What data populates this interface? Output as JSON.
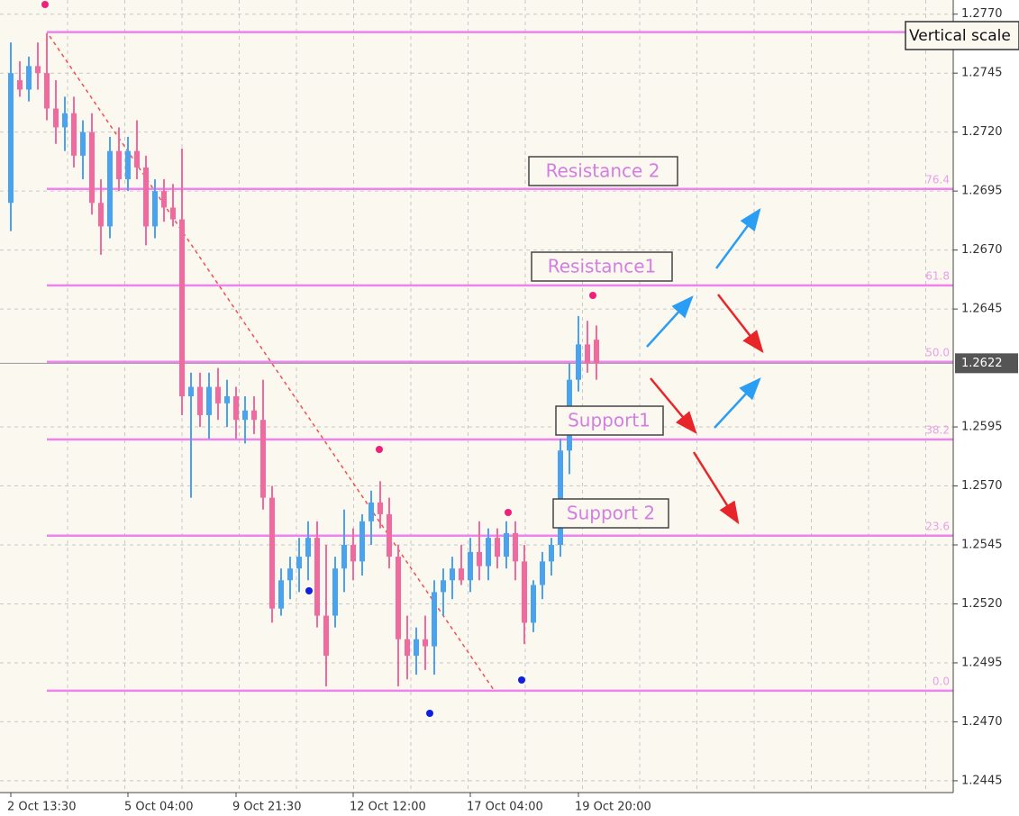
{
  "chart_data": {
    "type": "candlestick",
    "categories": [
      "2 Oct 13:30",
      null,
      null,
      null,
      null,
      null,
      null,
      null,
      null,
      null,
      null,
      null,
      null,
      "5 Oct 04:00",
      null,
      null,
      null,
      null,
      null,
      null,
      null,
      null,
      null,
      null,
      null,
      "9 Oct 21:30",
      null,
      null,
      null,
      null,
      null,
      null,
      null,
      null,
      null,
      null,
      null,
      null,
      "12 Oct 12:00",
      null,
      null,
      null,
      null,
      null,
      null,
      null,
      null,
      null,
      null,
      null,
      null,
      "17 Oct 04:00",
      null,
      null,
      null,
      null,
      null,
      null,
      null,
      null,
      null,
      null,
      null,
      "19 Oct 20:00",
      null,
      null
    ],
    "open": [
      1.269,
      1.2742,
      1.2738,
      1.2748,
      1.2745,
      1.273,
      1.2722,
      1.2728,
      1.271,
      1.272,
      1.269,
      1.268,
      1.2712,
      1.27,
      1.2712,
      1.2705,
      1.268,
      1.2695,
      1.2688,
      1.2683,
      1.2608,
      1.2612,
      1.26,
      1.2612,
      1.2605,
      1.2608,
      1.2598,
      1.2602,
      1.2598,
      1.2565,
      1.2518,
      1.253,
      1.2535,
      1.254,
      1.2548,
      1.2515,
      1.2515,
      1.2535,
      1.2545,
      1.2538,
      1.2555,
      1.2563,
      1.2558,
      1.254,
      1.2505,
      1.2498,
      1.2505,
      1.2502,
      1.2525,
      1.253,
      1.2535,
      1.253,
      1.2542,
      1.2536,
      1.2548,
      1.254,
      1.255,
      1.2538,
      1.2512,
      1.2528,
      1.2538,
      1.2545,
      1.2585,
      1.2615,
      1.263,
      1.2632
    ],
    "high": [
      1.2758,
      1.275,
      1.2752,
      1.2758,
      1.2762,
      1.2742,
      1.2735,
      1.2735,
      1.2725,
      1.2728,
      1.27,
      1.2718,
      1.2722,
      1.2718,
      1.2725,
      1.271,
      1.27,
      1.27,
      1.2698,
      1.2713,
      1.2618,
      1.2618,
      1.2618,
      1.262,
      1.2615,
      1.2612,
      1.2608,
      1.2608,
      1.2615,
      1.257,
      1.2535,
      1.254,
      1.2548,
      1.2555,
      1.2555,
      1.2545,
      1.254,
      1.256,
      1.2552,
      1.2558,
      1.2568,
      1.2572,
      1.2565,
      1.2545,
      1.2515,
      1.251,
      1.2515,
      1.253,
      1.2535,
      1.254,
      1.2545,
      1.2548,
      1.2555,
      1.2552,
      1.2552,
      1.2555,
      1.2555,
      1.2545,
      1.253,
      1.2542,
      1.2548,
      1.259,
      1.2622,
      1.2642,
      1.264,
      1.2638
    ],
    "low": [
      1.2678,
      1.2735,
      1.2733,
      1.2738,
      1.2725,
      1.2715,
      1.2712,
      1.2705,
      1.27,
      1.2685,
      1.2668,
      1.2675,
      1.2695,
      1.2695,
      1.27,
      1.2672,
      1.2675,
      1.2682,
      1.268,
      1.26,
      1.2565,
      1.2595,
      1.259,
      1.2598,
      1.2595,
      1.259,
      1.2588,
      1.2592,
      1.256,
      1.2512,
      1.2515,
      1.2522,
      1.2525,
      1.253,
      1.251,
      1.2485,
      1.251,
      1.2525,
      1.253,
      1.2532,
      1.2545,
      1.2552,
      1.2535,
      1.2485,
      1.2488,
      1.249,
      1.2492,
      1.249,
      1.2515,
      1.2522,
      1.2528,
      1.2525,
      1.253,
      1.253,
      1.2535,
      1.2535,
      1.253,
      1.2503,
      1.2508,
      1.2522,
      1.2532,
      1.254,
      1.2575,
      1.261,
      1.2618,
      1.2615
    ],
    "close": [
      1.2745,
      1.2738,
      1.2748,
      1.2745,
      1.273,
      1.2722,
      1.2728,
      1.271,
      1.272,
      1.269,
      1.268,
      1.2712,
      1.27,
      1.2712,
      1.2705,
      1.268,
      1.2695,
      1.2688,
      1.2683,
      1.2608,
      1.2612,
      1.26,
      1.2612,
      1.2605,
      1.2608,
      1.2598,
      1.2602,
      1.2598,
      1.2565,
      1.2518,
      1.253,
      1.2535,
      1.254,
      1.2548,
      1.2515,
      1.2498,
      1.2535,
      1.2545,
      1.2538,
      1.2555,
      1.2563,
      1.2558,
      1.254,
      1.2505,
      1.2498,
      1.2505,
      1.2502,
      1.2525,
      1.253,
      1.2535,
      1.253,
      1.2542,
      1.2536,
      1.2548,
      1.254,
      1.255,
      1.2538,
      1.2512,
      1.2528,
      1.2538,
      1.2545,
      1.2585,
      1.2615,
      1.263,
      1.2622,
      1.2622
    ],
    "up_color": "#4aa3ef",
    "down_color": "#f06aa0",
    "ylim": [
      1.244,
      1.2776
    ],
    "yticks": [
      {
        "value": 1.277,
        "label": "1.2770"
      },
      1.2745,
      {
        "value": 1.272,
        "label": "1.2720"
      },
      1.2695,
      {
        "value": 1.267,
        "label": "1.2670"
      },
      1.2645,
      1.2595,
      {
        "value": 1.257,
        "label": "1.2570"
      },
      1.2545,
      {
        "value": 1.252,
        "label": "1.2520"
      },
      1.2495,
      {
        "value": 1.247,
        "label": "1.2470"
      },
      1.2445
    ],
    "grid": true,
    "last_price": 1.2622,
    "levels": [
      {
        "value": 1.27624
      },
      {
        "value": 1.26959,
        "label": "76.4"
      },
      {
        "value": 1.2655,
        "label": "61.8"
      },
      {
        "value": 1.26226,
        "label": "50.0"
      },
      {
        "value": 1.25897,
        "label": "38.2"
      },
      {
        "value": 1.25489,
        "label": "23.6"
      },
      {
        "value": 1.24832,
        "label": "0.0"
      }
    ],
    "level_color": "#ee82ee",
    "annotations": [
      "Resistance 2",
      "Resistance1",
      "Support1",
      "Support 2"
    ],
    "scale_label": "Vertical scale"
  }
}
